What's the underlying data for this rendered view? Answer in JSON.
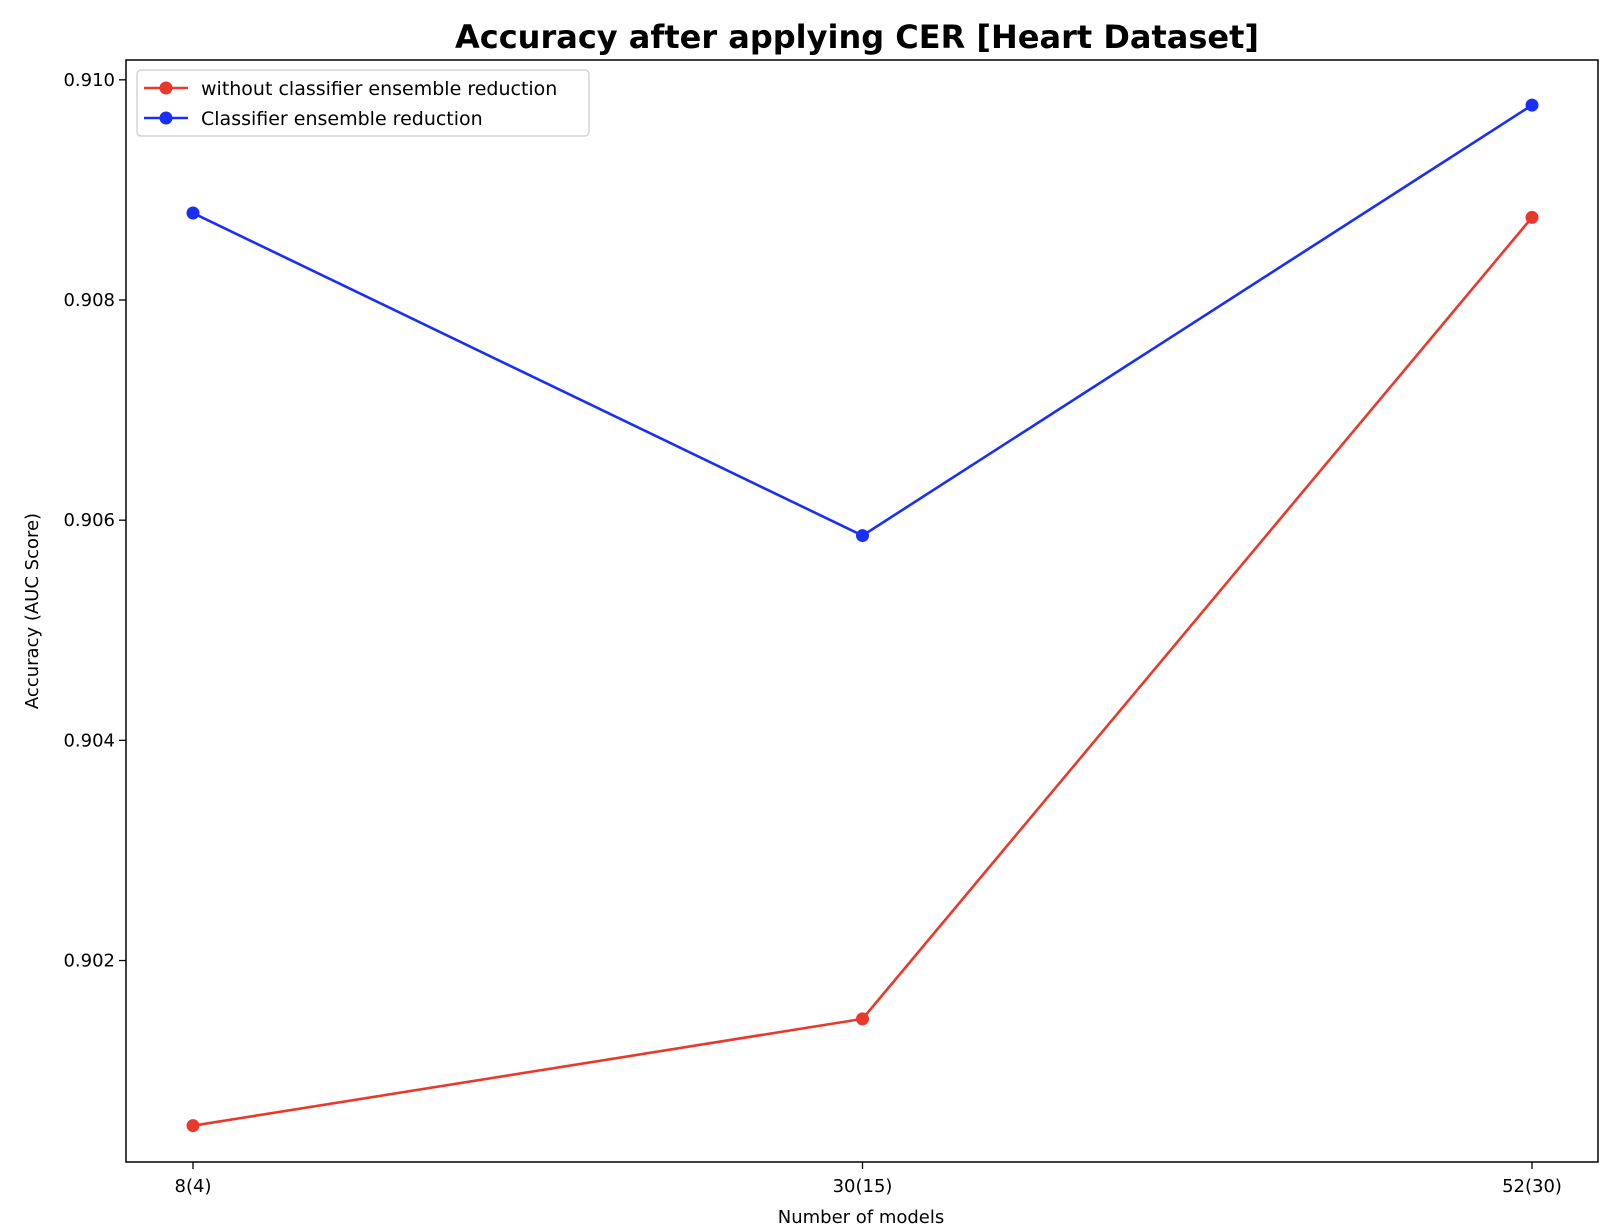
{
  "chart_data": {
    "type": "line",
    "title": "Accuracy after applying CER [Heart Dataset]",
    "xlabel": "Number of models",
    "ylabel": "Accuracy (AUC Score)",
    "categories": [
      "8(4)",
      "30(15)",
      "52(30)"
    ],
    "yticks": [
      0.902,
      0.904,
      0.906,
      0.908,
      0.91
    ],
    "ytick_labels": [
      "0.902",
      "0.904",
      "0.906",
      "0.908",
      "0.910"
    ],
    "ylim": [
      0.90017,
      0.91018
    ],
    "grid": false,
    "legend_position": "upper-left",
    "series": [
      {
        "name": "without classifier ensemble reduction",
        "color": "#e8392c",
        "values": [
          0.9005,
          0.90147,
          0.90875
        ]
      },
      {
        "name": "Classifier ensemble reduction",
        "color": "#1a2ff5",
        "values": [
          0.90879,
          0.90586,
          0.90977
        ]
      }
    ]
  }
}
